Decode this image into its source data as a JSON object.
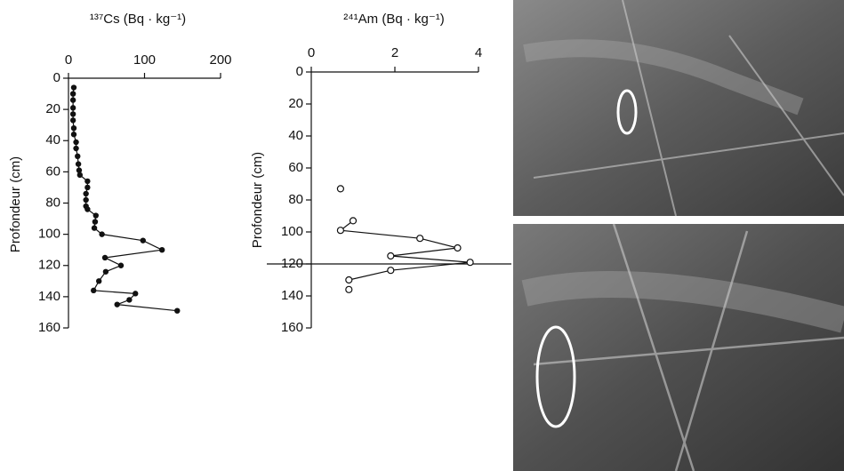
{
  "chart_data": [
    {
      "type": "line",
      "title": "¹³⁷Cs (Bq · kg⁻¹)",
      "ylabel": "Profondeur (cm)",
      "x": [
        7,
        6,
        6,
        6,
        6,
        6,
        7,
        7,
        10,
        10,
        12,
        13,
        14,
        15,
        25,
        25,
        23,
        23,
        23,
        25,
        36,
        35,
        34,
        44,
        98,
        123,
        48,
        69,
        49,
        40,
        33,
        88,
        80,
        64,
        143
      ],
      "values": [
        6,
        10,
        14,
        19,
        23,
        27,
        32,
        36,
        41,
        45,
        50,
        55,
        59,
        62,
        66,
        70,
        74,
        78,
        82,
        84,
        88,
        92,
        96,
        100,
        104,
        110,
        115,
        120,
        124,
        130,
        136,
        138,
        142,
        145,
        149
      ],
      "color": "#111111",
      "xlim": [
        0,
        200
      ],
      "xticks": [
        0,
        100,
        200
      ],
      "ylim": [
        0,
        160
      ],
      "yticks": [
        0,
        20,
        40,
        60,
        80,
        100,
        120,
        140,
        160
      ]
    },
    {
      "type": "scatter",
      "title": "²⁴¹Am (Bq · kg⁻¹)",
      "ylabel": "Profondeur (cm)",
      "x": [
        0.7,
        1.0,
        0.7,
        2.6,
        3.5,
        1.9,
        3.8,
        1.9,
        0.9,
        0.9
      ],
      "values": [
        73,
        93,
        99,
        104,
        110,
        115,
        119,
        124,
        130,
        136
      ],
      "hline": 120,
      "color": "#111111",
      "xlim": [
        0,
        4
      ],
      "xticks": [
        0,
        2,
        4
      ],
      "ylim": [
        0,
        160
      ],
      "yticks": [
        0,
        20,
        40,
        60,
        80,
        100,
        120,
        140,
        160
      ]
    }
  ]
}
